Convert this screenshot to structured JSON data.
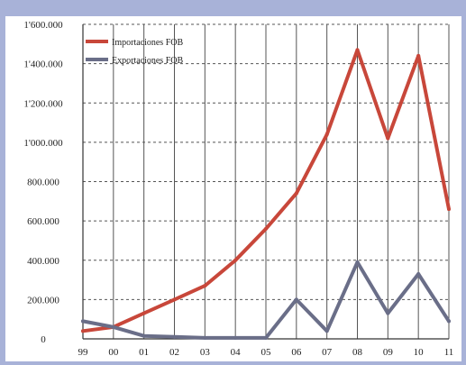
{
  "chart_data": {
    "type": "line",
    "x": [
      "99",
      "00",
      "01",
      "02",
      "03",
      "04",
      "05",
      "06",
      "07",
      "08",
      "09",
      "10",
      "11"
    ],
    "ylim": [
      0,
      1600000
    ],
    "yticks": [
      0,
      200000,
      400000,
      600000,
      800000,
      1000000,
      1200000,
      1400000,
      1600000
    ],
    "ytick_labels": [
      "0",
      "200.000",
      "400.000",
      "600.000",
      "800.000",
      "1'000.000",
      "1'200.000",
      "1'400.000",
      "1'600.000"
    ],
    "grid": true,
    "legend_position": "top-left",
    "series": [
      {
        "name": "Importaciones FOB",
        "color": "#c8473a",
        "values": [
          40000,
          60000,
          130000,
          200000,
          270000,
          400000,
          560000,
          740000,
          1040000,
          1470000,
          1020000,
          1440000,
          660000
        ]
      },
      {
        "name": "Exportaciones FOB",
        "color": "#6a6e88",
        "values": [
          90000,
          60000,
          15000,
          10000,
          5000,
          5000,
          5000,
          200000,
          40000,
          390000,
          130000,
          330000,
          90000
        ]
      }
    ]
  },
  "colors": {
    "frame": "#a8b2d8",
    "plot_background": "#ffffff",
    "grid": "#555555"
  }
}
